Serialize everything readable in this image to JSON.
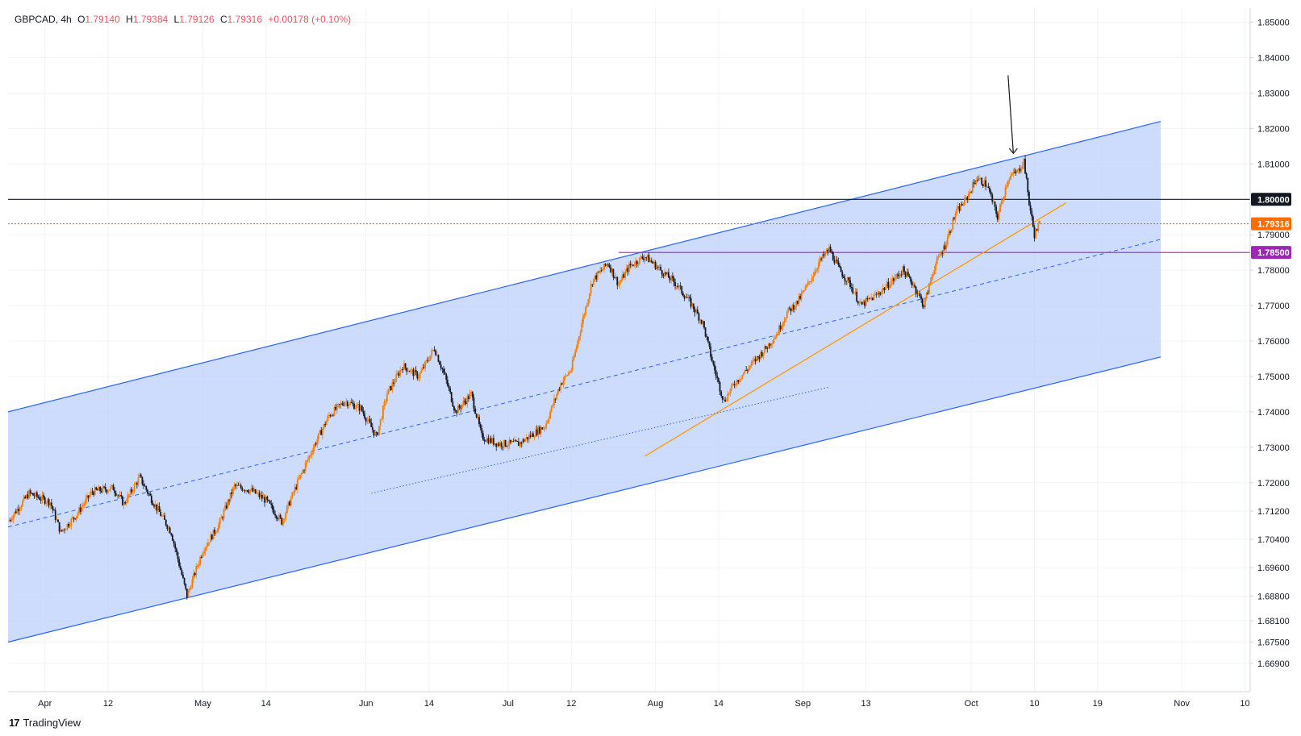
{
  "legend": {
    "symbol": "GBPCAD",
    "interval": "4h",
    "open_label": "O",
    "open": "1.79140",
    "high_label": "H",
    "high": "1.79384",
    "low_label": "L",
    "low": "1.79126",
    "close_label": "C",
    "close": "1.79316",
    "change": "+0.00178 (+0.10%)"
  },
  "brand": {
    "name": "TradingView",
    "logo": "17"
  },
  "colors": {
    "up_candle": "#f57c00",
    "down_candle": "#131722",
    "channel_line": "#2962ff",
    "channel_fill": "#bcd0fb",
    "trend_line": "#ff9800",
    "level_black": "#131722",
    "level_purple": "#9c27b0",
    "price_tag": "#ff6d00"
  },
  "chart_data": {
    "type": "candlestick",
    "symbol": "GBPCAD",
    "interval": "4h",
    "ylim": [
      1.661,
      1.854
    ],
    "y_ticks": [
      "1.85000",
      "1.84000",
      "1.83000",
      "1.82000",
      "1.81000",
      "1.79000",
      "1.78000",
      "1.77000",
      "1.76000",
      "1.75000",
      "1.74000",
      "1.73000",
      "1.72000",
      "1.71200",
      "1.70400",
      "1.69600",
      "1.68800",
      "1.68100",
      "1.67500",
      "1.66900"
    ],
    "x_ticks": [
      "Apr",
      "12",
      "May",
      "14",
      "Jun",
      "14",
      "Jul",
      "12",
      "Aug",
      "14",
      "Sep",
      "13",
      "Oct",
      "10",
      "19",
      "Nov",
      "10"
    ],
    "price_path": [
      [
        0,
        1.709
      ],
      [
        4,
        1.717
      ],
      [
        8,
        1.7145
      ],
      [
        10,
        1.706
      ],
      [
        13,
        1.711
      ],
      [
        16,
        1.7175
      ],
      [
        20,
        1.7185
      ],
      [
        22,
        1.714
      ],
      [
        25,
        1.7215
      ],
      [
        27,
        1.716
      ],
      [
        31,
        1.706
      ],
      [
        34,
        1.688
      ],
      [
        37,
        1.701
      ],
      [
        40,
        1.708
      ],
      [
        43,
        1.719
      ],
      [
        46,
        1.718
      ],
      [
        49,
        1.715
      ],
      [
        52,
        1.709
      ],
      [
        55,
        1.72
      ],
      [
        58,
        1.73
      ],
      [
        61,
        1.739
      ],
      [
        64,
        1.743
      ],
      [
        67,
        1.741
      ],
      [
        70,
        1.733
      ],
      [
        72,
        1.745
      ],
      [
        75,
        1.753
      ],
      [
        78,
        1.75
      ],
      [
        81,
        1.758
      ],
      [
        83,
        1.75
      ],
      [
        85,
        1.74
      ],
      [
        88,
        1.745
      ],
      [
        90,
        1.733
      ],
      [
        93,
        1.731
      ],
      [
        97,
        1.731
      ],
      [
        99,
        1.733
      ],
      [
        102,
        1.736
      ],
      [
        105,
        1.748
      ],
      [
        107,
        1.752
      ],
      [
        109,
        1.765
      ],
      [
        111,
        1.777
      ],
      [
        114,
        1.782
      ],
      [
        116,
        1.776
      ],
      [
        118,
        1.781
      ],
      [
        121,
        1.784
      ],
      [
        124,
        1.78
      ],
      [
        127,
        1.776
      ],
      [
        130,
        1.77
      ],
      [
        132,
        1.765
      ],
      [
        134,
        1.753
      ],
      [
        136,
        1.743
      ],
      [
        138,
        1.748
      ],
      [
        141,
        1.753
      ],
      [
        144,
        1.758
      ],
      [
        146,
        1.762
      ],
      [
        148,
        1.768
      ],
      [
        150,
        1.771
      ],
      [
        152,
        1.776
      ],
      [
        154,
        1.782
      ],
      [
        156,
        1.786
      ],
      [
        158,
        1.78
      ],
      [
        160,
        1.776
      ],
      [
        162,
        1.77
      ],
      [
        165,
        1.773
      ],
      [
        168,
        1.777
      ],
      [
        170,
        1.78
      ],
      [
        172,
        1.776
      ],
      [
        174,
        1.77
      ],
      [
        176,
        1.781
      ],
      [
        178,
        1.787
      ],
      [
        180,
        1.796
      ],
      [
        182,
        1.8
      ],
      [
        184,
        1.806
      ],
      [
        186,
        1.804
      ],
      [
        188,
        1.795
      ],
      [
        190,
        1.806
      ],
      [
        192,
        1.808
      ],
      [
        193,
        1.811
      ],
      [
        194,
        1.799
      ],
      [
        195,
        1.79
      ],
      [
        196,
        1.7932
      ]
    ],
    "horizontal_levels": [
      {
        "price": 1.8,
        "label": "1.80000",
        "color": "#131722",
        "style": "solid"
      },
      {
        "price": 1.7931,
        "label": "1.79316",
        "color": "#ff6d00",
        "style": "dotted"
      },
      {
        "price": 1.785,
        "label": "1.78500",
        "color": "#9c27b0",
        "style": "solid"
      }
    ],
    "channel": {
      "upper": [
        [
          0,
          1.74
        ],
        [
          219,
          1.822
        ]
      ],
      "lower": [
        [
          0,
          1.675
        ],
        [
          219,
          1.7555
        ]
      ],
      "mid": [
        [
          0,
          1.7075
        ],
        [
          219,
          1.7887
        ]
      ]
    },
    "trend_lines": [
      {
        "name": "orange-support",
        "from": [
          121,
          1.7275
        ],
        "to": [
          201,
          1.799
        ],
        "color": "#ff9800",
        "style": "solid"
      },
      {
        "name": "dotted-support",
        "from": [
          69,
          1.717
        ],
        "to": [
          156,
          1.747
        ],
        "color": "#2962ff",
        "style": "dotted"
      }
    ],
    "annotation_arrow": {
      "from": [
        190,
        1.835
      ],
      "to": [
        191,
        1.813
      ]
    }
  }
}
